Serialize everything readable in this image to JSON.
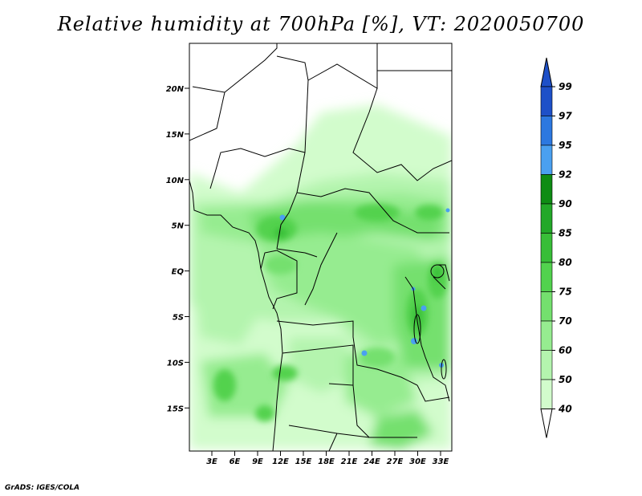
{
  "title": "Relative humidity at 700hPa [%], VT: 2020050700",
  "credit": "GrADS: IGES/COLA",
  "map": {
    "lon_ticks": [
      "3E",
      "6E",
      "9E",
      "12E",
      "15E",
      "18E",
      "21E",
      "24E",
      "27E",
      "30E",
      "33E"
    ],
    "lat_ticks": [
      "20N",
      "15N",
      "10N",
      "5N",
      "EQ",
      "5S",
      "10S",
      "15S"
    ],
    "lon_range": [
      0,
      35
    ],
    "lat_range": [
      -20,
      25
    ]
  },
  "colorbar": {
    "levels": [
      "99",
      "97",
      "95",
      "92",
      "90",
      "85",
      "80",
      "75",
      "70",
      "60",
      "50",
      "40"
    ],
    "colors": [
      "#1e50c8",
      "#2c78e0",
      "#4aa0f0",
      "#0e8c14",
      "#22a828",
      "#38be38",
      "#52d24e",
      "#74e06e",
      "#96ec90",
      "#b4f4ae",
      "#d2fccc",
      "#f0fff0"
    ],
    "top_color": "#1e50c8",
    "bottom_color": "#ffffff"
  }
}
